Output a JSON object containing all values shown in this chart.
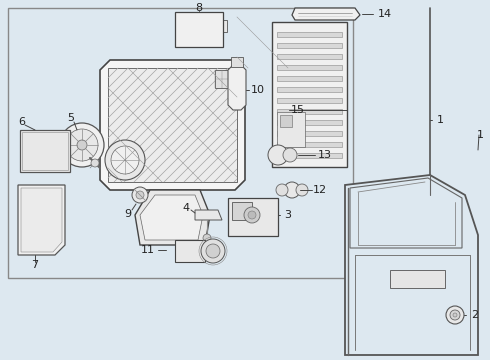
{
  "fig_width": 4.9,
  "fig_height": 3.6,
  "dpi": 100,
  "bg_color": "#dde8f0",
  "box_bg": "#dde8f0",
  "line_color": "#444444",
  "white": "#ffffff"
}
